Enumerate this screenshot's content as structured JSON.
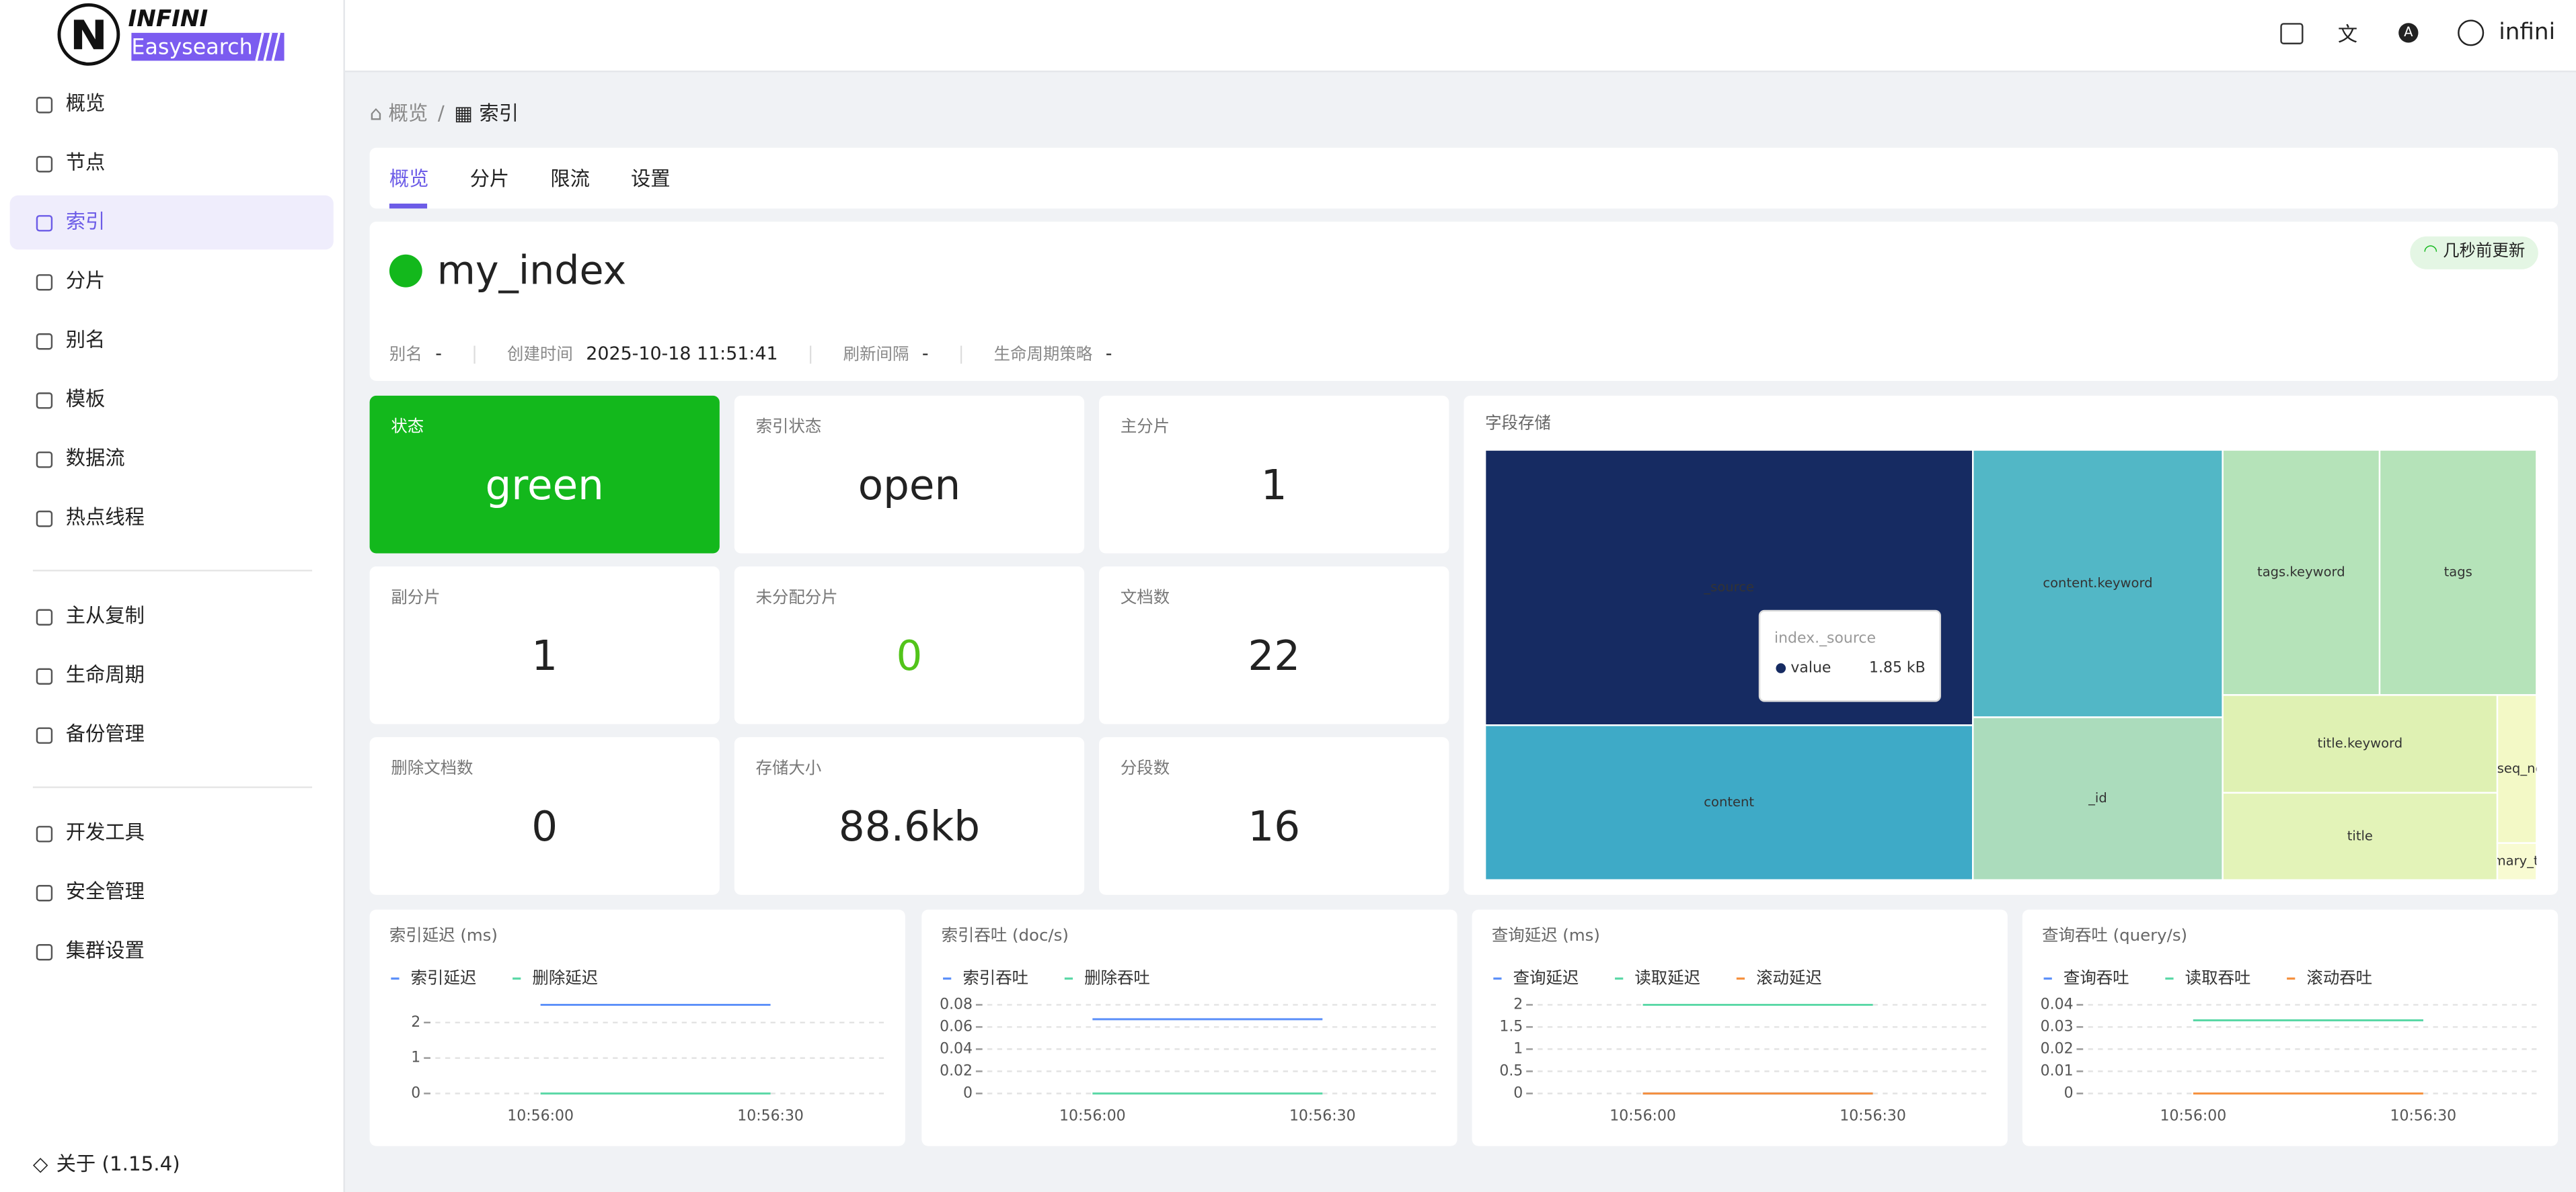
{
  "brand": {
    "name": "INFINI",
    "product": "Easysearch"
  },
  "user": "infini",
  "menu": {
    "groups": [
      [
        "概览",
        "节点",
        "索引",
        "分片",
        "别名",
        "模板",
        "数据流",
        "热点线程"
      ],
      [
        "主从复制",
        "生命周期",
        "备份管理"
      ],
      [
        "开发工具",
        "安全管理",
        "集群设置"
      ]
    ],
    "about": "关于 (1.15.4)"
  },
  "breadcrumb": [
    "概览",
    "索引"
  ],
  "tabs": [
    "概览",
    "分片",
    "限流",
    "设置"
  ],
  "index": {
    "name": "my_index",
    "updated": "几秒前更新",
    "meta": [
      {
        "label": "别名",
        "value": "-"
      },
      {
        "label": "创建时间",
        "value": "2025-10-18 11:51:41"
      },
      {
        "label": "刷新间隔",
        "value": "-"
      },
      {
        "label": "生命周期策略",
        "value": "-"
      }
    ]
  },
  "stats": [
    {
      "label": "状态",
      "value": "green"
    },
    {
      "label": "索引状态",
      "value": "open"
    },
    {
      "label": "主分片",
      "value": 1
    },
    {
      "label": "副分片",
      "value": 1
    },
    {
      "label": "未分配分片",
      "value": 0
    },
    {
      "label": "文档数",
      "value": 22
    },
    {
      "label": "删除文档数",
      "value": 0
    },
    {
      "label": "存储大小",
      "value": "88.6kb"
    },
    {
      "label": "分段数",
      "value": 16
    }
  ],
  "chart_data": [
    {
      "type": "treemap",
      "title": "字段存储",
      "categories": [
        "_source",
        "content",
        "content.keyword",
        "_id",
        "tags.keyword",
        "tags",
        "title.keyword",
        "title",
        "_seq_no",
        "_primary_term"
      ],
      "values": [
        1.85,
        1.04,
        0.92,
        0.56,
        0.53,
        0.53,
        0.37,
        0.33,
        0.08,
        0.02
      ],
      "colors": [
        "#162b62",
        "#3eaac7",
        "#52b7c6",
        "#abdcbc",
        "#b5e3b9",
        "#b5e3b9",
        "#dff1b3",
        "#e3f3b8",
        "#f3f9c6",
        "#f8fbd2"
      ],
      "tooltip": {
        "title": "index._source",
        "series": "value",
        "value_label": "1.85 kB"
      }
    },
    {
      "type": "line",
      "title": "索引延迟 (ms)",
      "x": [
        "10:56:00",
        "10:56:30"
      ],
      "series": [
        {
          "name": "索引延迟",
          "color": "#5b8ff9",
          "values": [
            2.5,
            2.5
          ]
        },
        {
          "name": "删除延迟",
          "color": "#5ad8a6",
          "values": [
            0,
            0
          ]
        }
      ],
      "ylim": [
        0,
        2.5
      ],
      "yticks": [
        0,
        1,
        2
      ],
      "grid": true
    },
    {
      "type": "line",
      "title": "索引吞吐 (doc/s)",
      "x": [
        "10:56:00",
        "10:56:30"
      ],
      "series": [
        {
          "name": "索引吞吐",
          "color": "#5b8ff9",
          "values": [
            0.067,
            0.067
          ]
        },
        {
          "name": "删除吞吐",
          "color": "#5ad8a6",
          "values": [
            0,
            0
          ]
        }
      ],
      "ylim": [
        0,
        0.08
      ],
      "yticks": [
        0,
        0.02,
        0.04,
        0.06,
        0.08
      ],
      "grid": true
    },
    {
      "type": "line",
      "title": "查询延迟 (ms)",
      "x": [
        "10:56:00",
        "10:56:30"
      ],
      "series": [
        {
          "name": "查询延迟",
          "color": "#5b8ff9",
          "values": [
            0,
            0
          ]
        },
        {
          "name": "读取延迟",
          "color": "#5ad8a6",
          "values": [
            2,
            2
          ]
        },
        {
          "name": "滚动延迟",
          "color": "#f6903d",
          "values": [
            0,
            0
          ]
        }
      ],
      "ylim": [
        0,
        2
      ],
      "yticks": [
        0,
        0.5,
        1,
        1.5,
        2
      ],
      "grid": true
    },
    {
      "type": "line",
      "title": "查询吞吐 (query/s)",
      "x": [
        "10:56:00",
        "10:56:30"
      ],
      "series": [
        {
          "name": "查询吞吐",
          "color": "#5b8ff9",
          "values": [
            0.033,
            0.033
          ]
        },
        {
          "name": "读取吞吐",
          "color": "#5ad8a6",
          "values": [
            0.033,
            0.033
          ]
        },
        {
          "name": "滚动吞吐",
          "color": "#f6903d",
          "values": [
            0,
            0
          ]
        }
      ],
      "ylim": [
        0,
        0.04
      ],
      "yticks": [
        0,
        0.01,
        0.02,
        0.03,
        0.04
      ],
      "grid": true
    }
  ]
}
